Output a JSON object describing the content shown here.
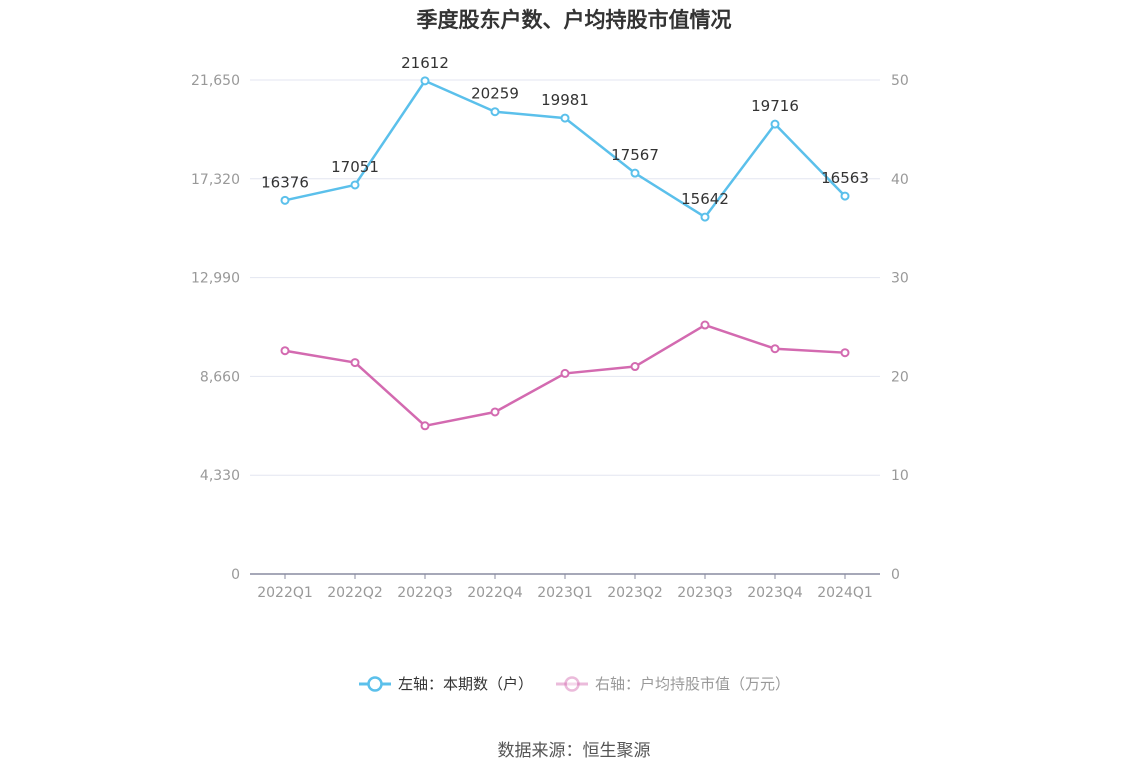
{
  "chart_data": {
    "type": "line",
    "title": "季度股东户数、户均持股市值情况",
    "categories": [
      "2022Q1",
      "2022Q2",
      "2022Q3",
      "2022Q4",
      "2023Q1",
      "2023Q2",
      "2023Q3",
      "2023Q4",
      "2024Q1"
    ],
    "left_axis": {
      "ticks": [
        "0",
        "4,330",
        "8,660",
        "12,990",
        "17,320",
        "21,650"
      ],
      "ylim": [
        0,
        21650
      ]
    },
    "right_axis": {
      "ticks": [
        "0",
        "10",
        "20",
        "30",
        "40",
        "50"
      ],
      "ylim": [
        0,
        50
      ]
    },
    "series": [
      {
        "name": "左轴：本期数（户）",
        "axis": "left",
        "color": "#5bc0eb",
        "values": [
          16376,
          17051,
          21612,
          20259,
          19981,
          17567,
          15642,
          19716,
          16563
        ],
        "labels": [
          "16376",
          "17051",
          "21612",
          "20259",
          "19981",
          "17567",
          "15642",
          "19716",
          "16563"
        ]
      },
      {
        "name": "右轴：户均持股市值（万元）",
        "axis": "right",
        "color": "#d36ab0",
        "values": [
          22.6,
          21.4,
          15.0,
          16.4,
          20.3,
          21.0,
          25.2,
          22.8,
          22.4
        ]
      }
    ],
    "grid": true,
    "legend_position": "bottom"
  },
  "source": "数据来源：恒生聚源"
}
